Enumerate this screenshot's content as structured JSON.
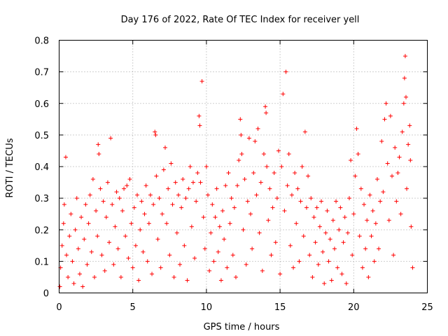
{
  "chart_data": {
    "type": "scatter",
    "title": "Day 176 of 2022, Rate Of TEC Index for receiver yell",
    "xlabel": "GPS time / hours",
    "ylabel": "ROTI / TECUs",
    "xlim": [
      0,
      25
    ],
    "ylim": [
      0,
      0.8
    ],
    "x_ticks": [
      0,
      5,
      10,
      15,
      20,
      25
    ],
    "x_tick_labels": [
      "0",
      "5",
      "10",
      "15",
      "20",
      "25"
    ],
    "y_ticks": [
      0,
      0.1,
      0.2,
      0.3,
      0.4,
      0.5,
      0.6,
      0.7,
      0.8
    ],
    "y_tick_labels": [
      "0",
      "0.1",
      "0.2",
      "0.3",
      "0.4",
      "0.5",
      "0.6",
      "0.7",
      "0.8"
    ],
    "grid": true,
    "marker": "+",
    "color": "#ff0000",
    "series": [
      {
        "name": "ROTI",
        "points": [
          [
            0.05,
            0.02
          ],
          [
            0.1,
            0.08
          ],
          [
            0.2,
            0.15
          ],
          [
            0.3,
            0.22
          ],
          [
            0.35,
            0.28
          ],
          [
            0.45,
            0.43
          ],
          [
            0.5,
            0.12
          ],
          [
            0.6,
            0.05
          ],
          [
            0.7,
            0.18
          ],
          [
            0.8,
            0.25
          ],
          [
            0.9,
            0.1
          ],
          [
            1.0,
            0.03
          ],
          [
            1.1,
            0.2
          ],
          [
            1.2,
            0.3
          ],
          [
            1.3,
            0.14
          ],
          [
            1.4,
            0.06
          ],
          [
            1.5,
            0.24
          ],
          [
            1.6,
            0.02
          ],
          [
            1.7,
            0.17
          ],
          [
            1.8,
            0.28
          ],
          [
            1.9,
            0.09
          ],
          [
            2.0,
            0.22
          ],
          [
            2.1,
            0.31
          ],
          [
            2.2,
            0.13
          ],
          [
            2.3,
            0.36
          ],
          [
            2.4,
            0.05
          ],
          [
            2.5,
            0.26
          ],
          [
            2.6,
            0.18
          ],
          [
            2.65,
            0.47
          ],
          [
            2.7,
            0.44
          ],
          [
            2.8,
            0.33
          ],
          [
            2.9,
            0.12
          ],
          [
            3.0,
            0.29
          ],
          [
            3.1,
            0.07
          ],
          [
            3.2,
            0.24
          ],
          [
            3.3,
            0.35
          ],
          [
            3.4,
            0.16
          ],
          [
            3.5,
            0.49
          ],
          [
            3.6,
            0.28
          ],
          [
            3.7,
            0.09
          ],
          [
            3.8,
            0.21
          ],
          [
            3.9,
            0.32
          ],
          [
            4.0,
            0.14
          ],
          [
            4.1,
            0.3
          ],
          [
            4.2,
            0.05
          ],
          [
            4.3,
            0.26
          ],
          [
            4.4,
            0.33
          ],
          [
            4.5,
            0.18
          ],
          [
            4.6,
            0.34
          ],
          [
            4.7,
            0.11
          ],
          [
            4.8,
            0.36
          ],
          [
            4.9,
            0.22
          ],
          [
            5.0,
            0.08
          ],
          [
            5.1,
            0.27
          ],
          [
            5.2,
            0.15
          ],
          [
            5.3,
            0.31
          ],
          [
            5.4,
            0.04
          ],
          [
            5.5,
            0.2
          ],
          [
            5.6,
            0.29
          ],
          [
            5.7,
            0.13
          ],
          [
            5.8,
            0.25
          ],
          [
            5.9,
            0.34
          ],
          [
            6.0,
            0.1
          ],
          [
            6.1,
            0.22
          ],
          [
            6.2,
            0.31
          ],
          [
            6.3,
            0.06
          ],
          [
            6.4,
            0.28
          ],
          [
            6.5,
            0.51
          ],
          [
            6.55,
            0.5
          ],
          [
            6.6,
            0.37
          ],
          [
            6.7,
            0.17
          ],
          [
            6.8,
            0.3
          ],
          [
            6.9,
            0.08
          ],
          [
            7.0,
            0.25
          ],
          [
            7.1,
            0.39
          ],
          [
            7.2,
            0.46
          ],
          [
            7.3,
            0.22
          ],
          [
            7.4,
            0.33
          ],
          [
            7.5,
            0.12
          ],
          [
            7.6,
            0.41
          ],
          [
            7.7,
            0.28
          ],
          [
            7.8,
            0.05
          ],
          [
            7.9,
            0.35
          ],
          [
            8.0,
            0.19
          ],
          [
            8.1,
            0.31
          ],
          [
            8.2,
            0.09
          ],
          [
            8.3,
            0.27
          ],
          [
            8.4,
            0.36
          ],
          [
            8.5,
            0.15
          ],
          [
            8.6,
            0.3
          ],
          [
            8.7,
            0.04
          ],
          [
            8.8,
            0.33
          ],
          [
            8.9,
            0.4
          ],
          [
            9.0,
            0.21
          ],
          [
            9.1,
            0.35
          ],
          [
            9.2,
            0.11
          ],
          [
            9.3,
            0.29
          ],
          [
            9.4,
            0.38
          ],
          [
            9.5,
            0.56
          ],
          [
            9.55,
            0.53
          ],
          [
            9.6,
            0.35
          ],
          [
            9.7,
            0.67
          ],
          [
            9.8,
            0.24
          ],
          [
            9.9,
            0.14
          ],
          [
            10.0,
            0.4
          ],
          [
            10.1,
            0.31
          ],
          [
            10.2,
            0.07
          ],
          [
            10.3,
            0.19
          ],
          [
            10.4,
            0.28
          ],
          [
            10.5,
            0.1
          ],
          [
            10.6,
            0.24
          ],
          [
            10.7,
            0.33
          ],
          [
            10.8,
            0.13
          ],
          [
            10.9,
            0.21
          ],
          [
            11.0,
            0.04
          ],
          [
            11.1,
            0.26
          ],
          [
            11.2,
            0.17
          ],
          [
            11.3,
            0.34
          ],
          [
            11.4,
            0.08
          ],
          [
            11.5,
            0.38
          ],
          [
            11.6,
            0.22
          ],
          [
            11.7,
            0.3
          ],
          [
            11.8,
            0.12
          ],
          [
            11.9,
            0.27
          ],
          [
            12.0,
            0.05
          ],
          [
            12.1,
            0.34
          ],
          [
            12.2,
            0.42
          ],
          [
            12.3,
            0.55
          ],
          [
            12.35,
            0.5
          ],
          [
            12.4,
            0.44
          ],
          [
            12.5,
            0.2
          ],
          [
            12.6,
            0.36
          ],
          [
            12.7,
            0.09
          ],
          [
            12.8,
            0.29
          ],
          [
            12.9,
            0.49
          ],
          [
            13.0,
            0.25
          ],
          [
            13.1,
            0.14
          ],
          [
            13.2,
            0.38
          ],
          [
            13.3,
            0.48
          ],
          [
            13.4,
            0.31
          ],
          [
            13.5,
            0.52
          ],
          [
            13.6,
            0.19
          ],
          [
            13.7,
            0.35
          ],
          [
            13.8,
            0.07
          ],
          [
            13.9,
            0.44
          ],
          [
            14.0,
            0.59
          ],
          [
            14.05,
            0.57
          ],
          [
            14.1,
            0.4
          ],
          [
            14.2,
            0.23
          ],
          [
            14.3,
            0.33
          ],
          [
            14.4,
            0.12
          ],
          [
            14.5,
            0.27
          ],
          [
            14.6,
            0.38
          ],
          [
            14.7,
            0.16
          ],
          [
            14.8,
            0.3
          ],
          [
            14.9,
            0.45
          ],
          [
            15.0,
            0.06
          ],
          [
            15.1,
            0.4
          ],
          [
            15.2,
            0.63
          ],
          [
            15.3,
            0.26
          ],
          [
            15.4,
            0.7
          ],
          [
            15.5,
            0.34
          ],
          [
            15.6,
            0.44
          ],
          [
            15.7,
            0.15
          ],
          [
            15.8,
            0.31
          ],
          [
            15.9,
            0.08
          ],
          [
            16.0,
            0.38
          ],
          [
            16.1,
            0.22
          ],
          [
            16.2,
            0.33
          ],
          [
            16.3,
            0.1
          ],
          [
            16.4,
            0.29
          ],
          [
            16.5,
            0.4
          ],
          [
            16.6,
            0.18
          ],
          [
            16.7,
            0.51
          ],
          [
            16.8,
            0.27
          ],
          [
            16.9,
            0.37
          ],
          [
            17.0,
            0.12
          ],
          [
            17.1,
            0.3
          ],
          [
            17.2,
            0.05
          ],
          [
            17.3,
            0.24
          ],
          [
            17.4,
            0.16
          ],
          [
            17.5,
            0.27
          ],
          [
            17.6,
            0.09
          ],
          [
            17.7,
            0.21
          ],
          [
            17.8,
            0.29
          ],
          [
            17.9,
            0.13
          ],
          [
            18.0,
            0.03
          ],
          [
            18.1,
            0.19
          ],
          [
            18.2,
            0.26
          ],
          [
            18.3,
            0.1
          ],
          [
            18.4,
            0.17
          ],
          [
            18.5,
            0.04
          ],
          [
            18.6,
            0.23
          ],
          [
            18.7,
            0.14
          ],
          [
            18.8,
            0.29
          ],
          [
            18.9,
            0.08
          ],
          [
            19.0,
            0.2
          ],
          [
            19.1,
            0.27
          ],
          [
            19.2,
            0.06
          ],
          [
            19.3,
            0.16
          ],
          [
            19.4,
            0.24
          ],
          [
            19.5,
            0.03
          ],
          [
            19.6,
            0.19
          ],
          [
            19.7,
            0.3
          ],
          [
            19.8,
            0.42
          ],
          [
            19.9,
            0.12
          ],
          [
            20.0,
            0.25
          ],
          [
            20.1,
            0.37
          ],
          [
            20.2,
            0.52
          ],
          [
            20.3,
            0.44
          ],
          [
            20.4,
            0.18
          ],
          [
            20.5,
            0.33
          ],
          [
            20.6,
            0.08
          ],
          [
            20.7,
            0.28
          ],
          [
            20.8,
            0.14
          ],
          [
            20.9,
            0.23
          ],
          [
            21.0,
            0.05
          ],
          [
            21.1,
            0.31
          ],
          [
            21.2,
            0.18
          ],
          [
            21.3,
            0.26
          ],
          [
            21.4,
            0.1
          ],
          [
            21.5,
            0.22
          ],
          [
            21.6,
            0.36
          ],
          [
            21.7,
            0.14
          ],
          [
            21.8,
            0.29
          ],
          [
            21.9,
            0.48
          ],
          [
            22.0,
            0.32
          ],
          [
            22.1,
            0.55
          ],
          [
            22.2,
            0.6
          ],
          [
            22.3,
            0.41
          ],
          [
            22.4,
            0.23
          ],
          [
            22.5,
            0.56
          ],
          [
            22.6,
            0.37
          ],
          [
            22.7,
            0.12
          ],
          [
            22.8,
            0.46
          ],
          [
            22.9,
            0.29
          ],
          [
            23.0,
            0.38
          ],
          [
            23.1,
            0.43
          ],
          [
            23.2,
            0.25
          ],
          [
            23.3,
            0.51
          ],
          [
            23.4,
            0.6
          ],
          [
            23.45,
            0.68
          ],
          [
            23.5,
            0.75
          ],
          [
            23.55,
            0.62
          ],
          [
            23.6,
            0.33
          ],
          [
            23.7,
            0.47
          ],
          [
            23.8,
            0.53
          ],
          [
            23.85,
            0.42
          ],
          [
            23.9,
            0.21
          ],
          [
            24.0,
            0.08
          ]
        ]
      }
    ]
  }
}
